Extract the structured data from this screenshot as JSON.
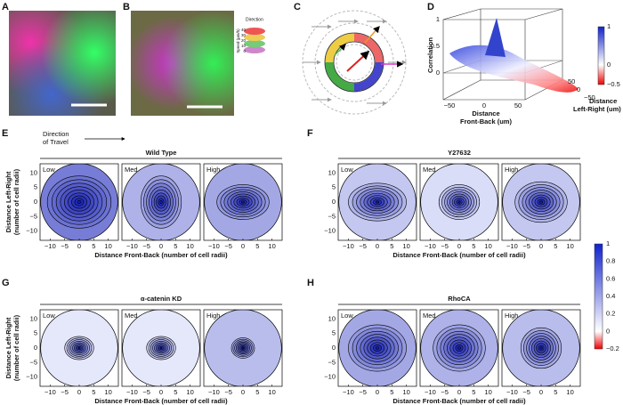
{
  "labels": [
    "A",
    "B",
    "C",
    "D",
    "E",
    "F",
    "G",
    "H"
  ],
  "legend_b": {
    "title": "Direction",
    "axis": "Speed (µm/h)",
    "ticks": [
      "40",
      "30",
      "20",
      "10",
      "0"
    ]
  },
  "plot_d": {
    "y_label": "Correlation",
    "y_ticks": [
      "1",
      "0.5",
      "0"
    ],
    "x_label": [
      "Distance",
      "Front-Back (um)"
    ],
    "x_ticks": [
      "−50",
      "0",
      "50"
    ],
    "z_label": [
      "Distance",
      "Left-Right (um)"
    ],
    "z_ticks": [
      "50",
      "0",
      "−50"
    ],
    "colorbar_ticks": [
      "1",
      "0",
      "−0.5"
    ]
  },
  "direction_label": [
    "Direction",
    "of Travel"
  ],
  "contour_sets": [
    {
      "title": "Wild Type",
      "panels": [
        "Low",
        "Med",
        "High"
      ]
    },
    {
      "title": "Y27632",
      "panels": [
        "Low",
        "Med",
        "High"
      ]
    },
    {
      "title": "α-catenin KD",
      "panels": [
        "Low",
        "Med",
        "High"
      ]
    },
    {
      "title": "RhoCA",
      "panels": [
        "Low",
        "Med",
        "High"
      ]
    }
  ],
  "x_ticks": [
    "−10",
    "−5",
    "0",
    "5",
    "10"
  ],
  "y_ticks": [
    "10",
    "5",
    "0",
    "−5",
    "−10"
  ],
  "x_label": "Distance Front-Back (number of cell radii)",
  "y_label": [
    "Distance Left-Right",
    "(number of cell radii)"
  ],
  "colorbar_ticks": [
    "1",
    "0.8",
    "0.6",
    "0.4",
    "0.2",
    "0",
    "−0.2"
  ]
}
